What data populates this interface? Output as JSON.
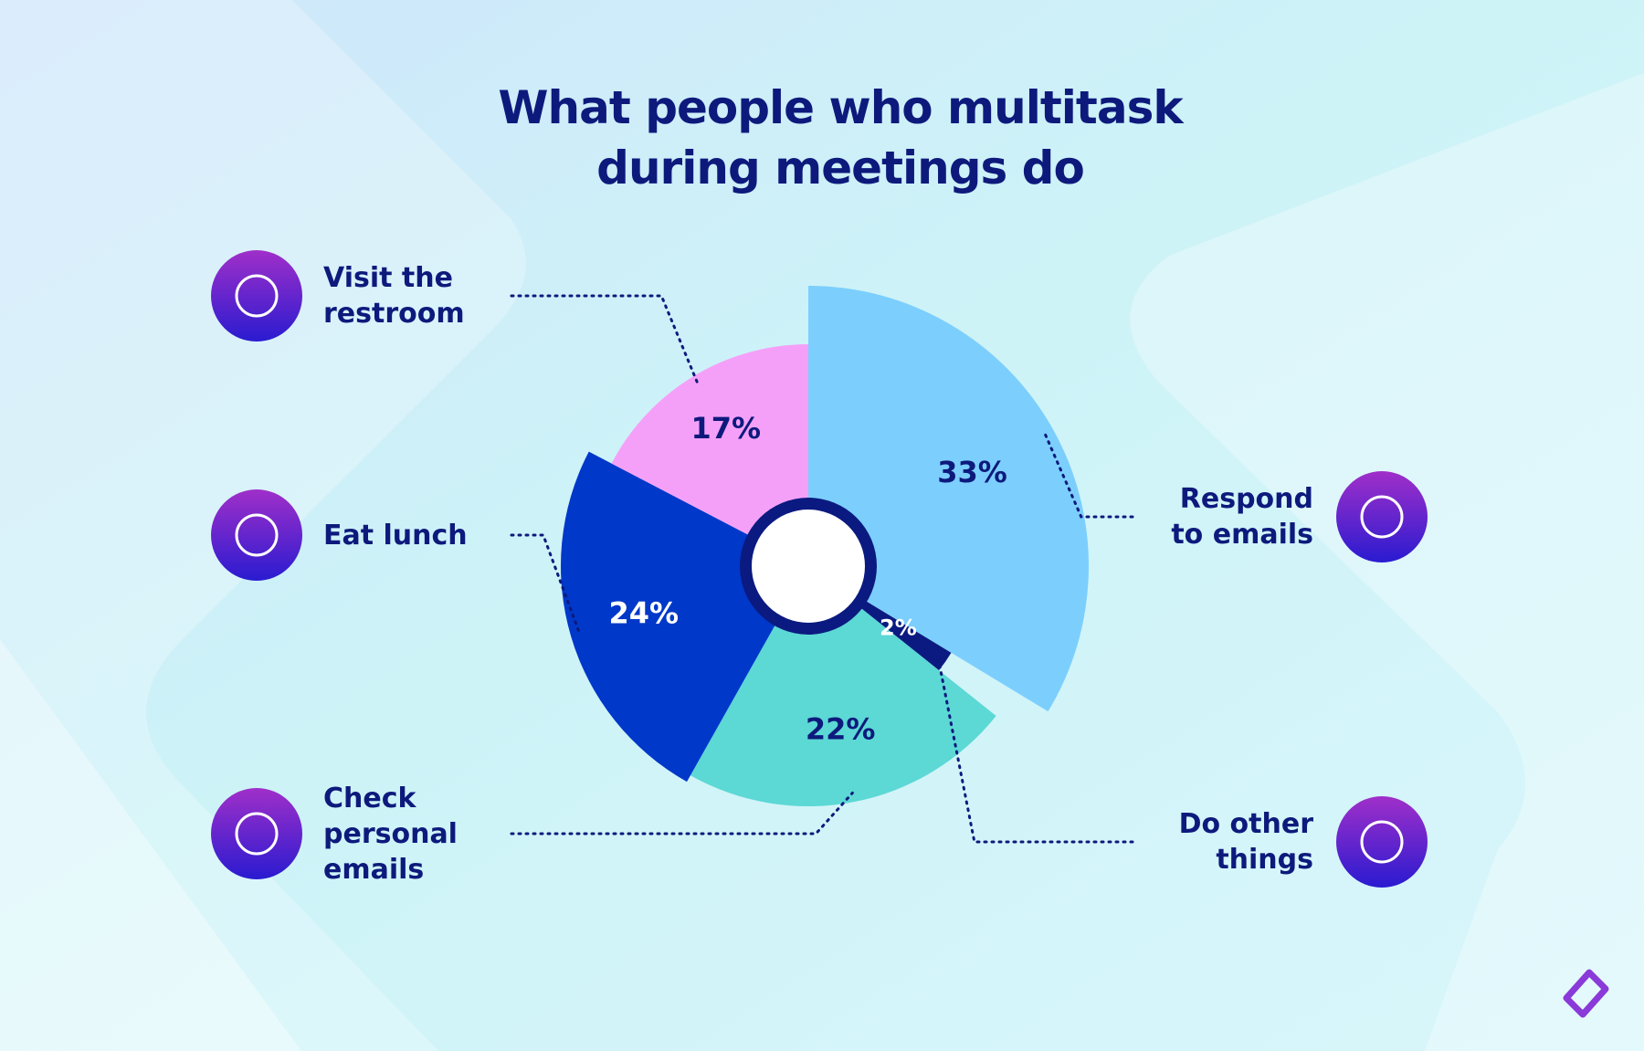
{
  "chart_data": {
    "type": "pie",
    "title": "What people who multitask during meetings do",
    "categories": [
      "Respond to emails",
      "Do other things",
      "Check personal emails",
      "Eat lunch",
      "Visit the restroom"
    ],
    "values": [
      33,
      2,
      22,
      24,
      17
    ],
    "value_labels": [
      "33%",
      "2%",
      "22%",
      "24%",
      "17%"
    ],
    "colors": [
      "#7ccffd",
      "#0b1a80",
      "#5cd8d5",
      "#0038c9",
      "#f5a0f8"
    ]
  }
}
